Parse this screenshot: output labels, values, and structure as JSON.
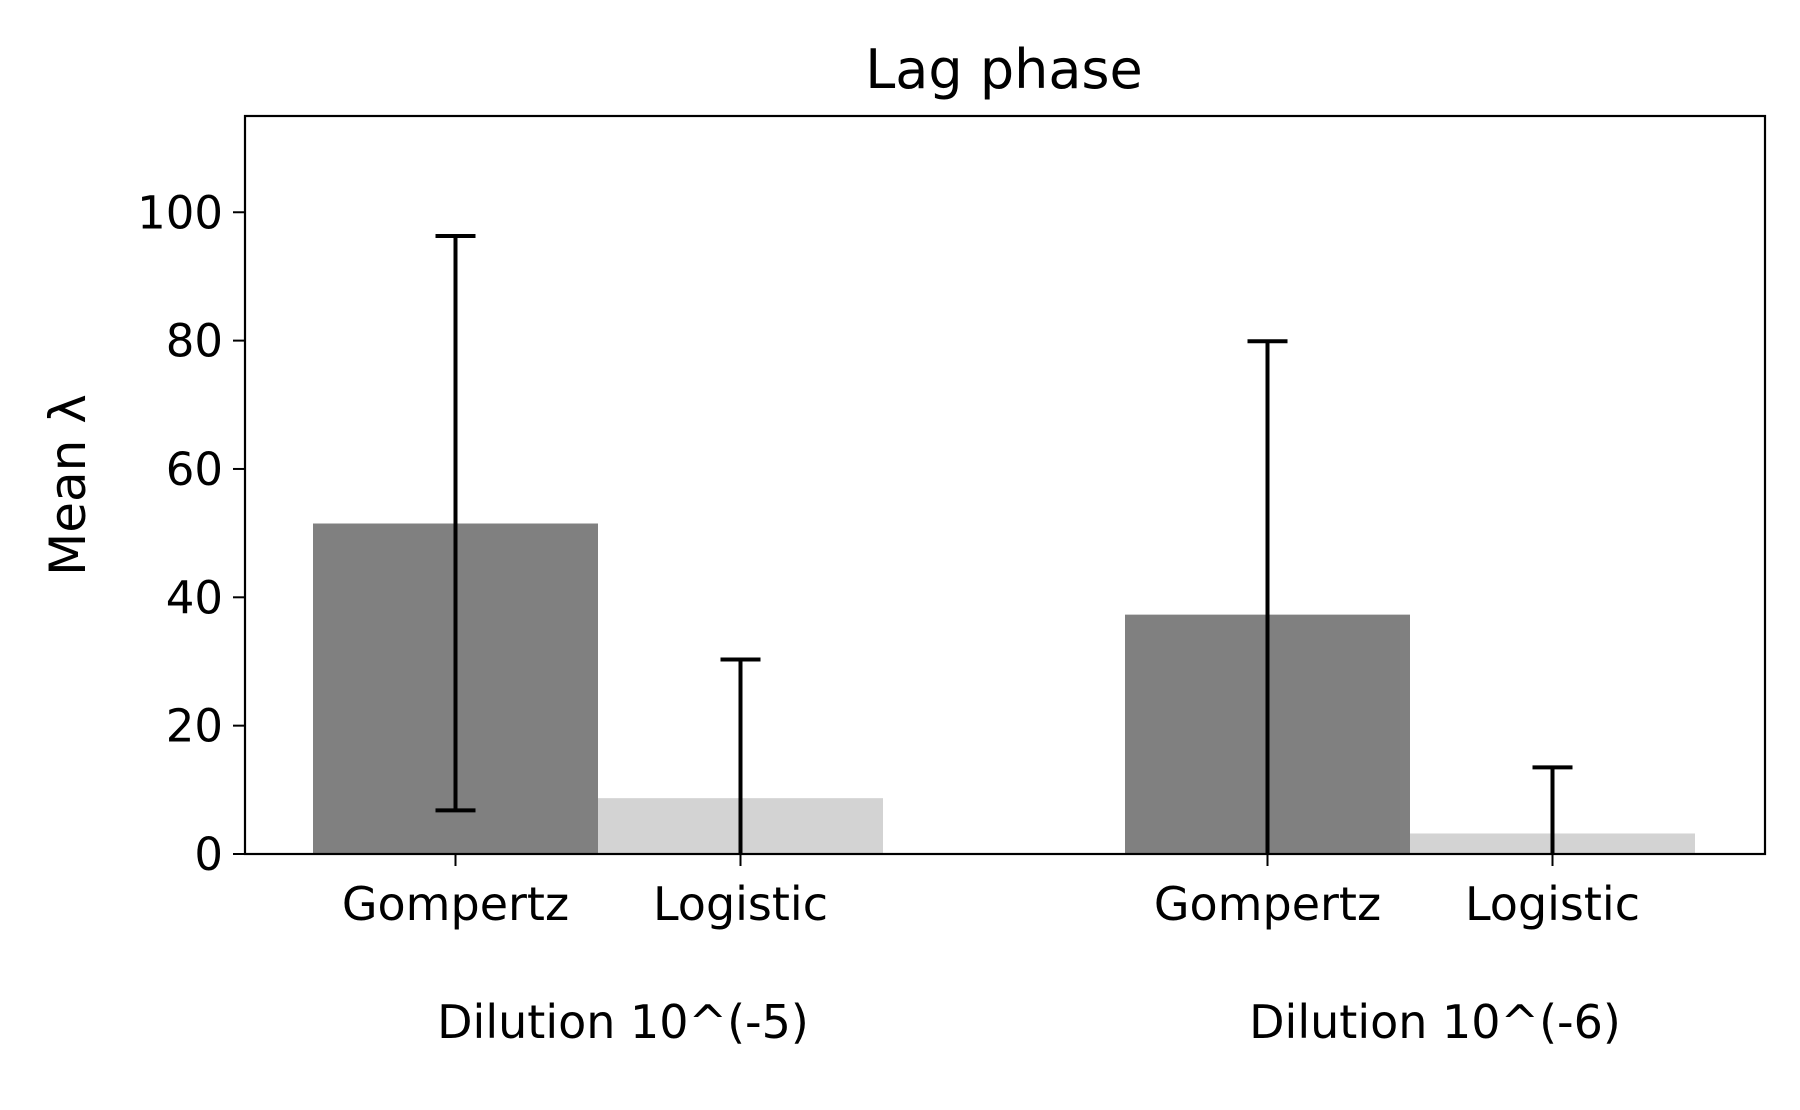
{
  "chart_data": {
    "type": "bar",
    "title": "Lag phase",
    "ylabel": "Mean λ",
    "xlabel": "",
    "ylim": [
      0,
      115
    ],
    "yticks": [
      0,
      20,
      40,
      60,
      80,
      100
    ],
    "grid": false,
    "groups": [
      {
        "label": "Dilution 10^(-5)",
        "bars": [
          {
            "label": "Gompertz",
            "value": 51.5,
            "err_low": 6.8,
            "err_high": 96.3,
            "color": "#808080"
          },
          {
            "label": "Logistic",
            "value": 8.7,
            "err_low": 0,
            "err_high": 30.3,
            "color": "#d3d3d3"
          }
        ]
      },
      {
        "label": "Dilution 10^(-6)",
        "bars": [
          {
            "label": "Gompertz",
            "value": 37.3,
            "err_low": 0,
            "err_high": 79.9,
            "color": "#808080"
          },
          {
            "label": "Logistic",
            "value": 3.2,
            "err_low": 0,
            "err_high": 13.5,
            "color": "#d3d3d3"
          }
        ]
      }
    ]
  }
}
